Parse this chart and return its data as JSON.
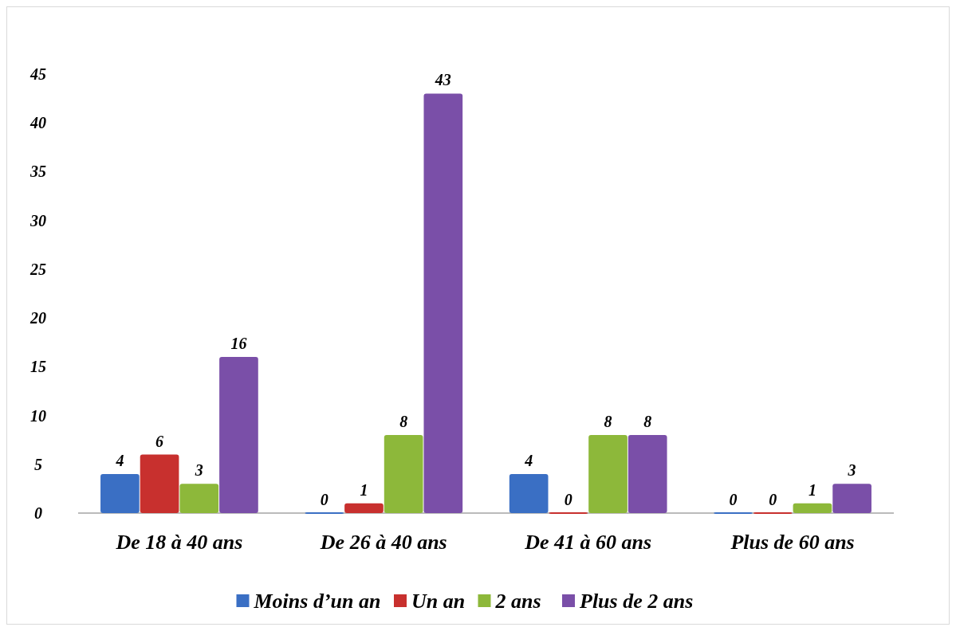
{
  "chart_data": {
    "type": "bar",
    "categories": [
      "De 18 à 40 ans",
      "De 26 à 40 ans",
      "De 41 à 60 ans",
      "Plus de 60 ans"
    ],
    "series": [
      {
        "name": "Moins d’un an",
        "color": "#3a6fc4",
        "values": [
          4,
          0,
          4,
          0
        ]
      },
      {
        "name": "Un an",
        "color": "#c8302e",
        "values": [
          6,
          1,
          0,
          0
        ]
      },
      {
        "name": "2 ans",
        "color": "#8db83a",
        "values": [
          3,
          8,
          8,
          1
        ]
      },
      {
        "name": "Plus de 2 ans",
        "color": "#7a4fa8",
        "values": [
          16,
          43,
          8,
          3
        ]
      }
    ],
    "ylim": [
      0,
      45
    ],
    "yticks": [
      0,
      5,
      10,
      15,
      20,
      25,
      30,
      35,
      40,
      45
    ],
    "grid": false,
    "legend": "bottom",
    "data_labels": true
  }
}
